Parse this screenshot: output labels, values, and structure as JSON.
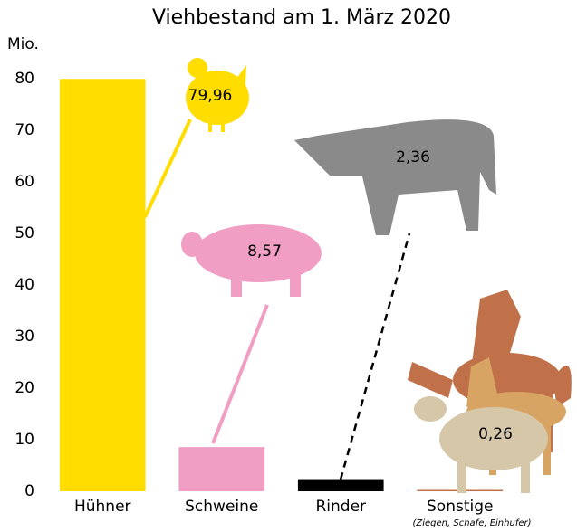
{
  "chart_data": {
    "type": "bar",
    "title": "Viehbestand am 1. März 2020",
    "y_label": "Mio.",
    "categories": [
      "Hühner",
      "Schweine",
      "Rinder",
      "Sonstige"
    ],
    "category_note": "(Ziegen, Schafe, Einhufer)",
    "values": [
      79.96,
      8.57,
      2.36,
      0.26
    ],
    "value_labels": [
      "79,96",
      "8,57",
      "2,36",
      "0,26"
    ],
    "colors": [
      "#ffdd00",
      "#f19ec5",
      "#000000",
      "#c1714a"
    ],
    "ylim": [
      0,
      80
    ],
    "yticks": [
      0,
      10,
      20,
      30,
      40,
      50,
      60,
      70,
      80
    ]
  }
}
